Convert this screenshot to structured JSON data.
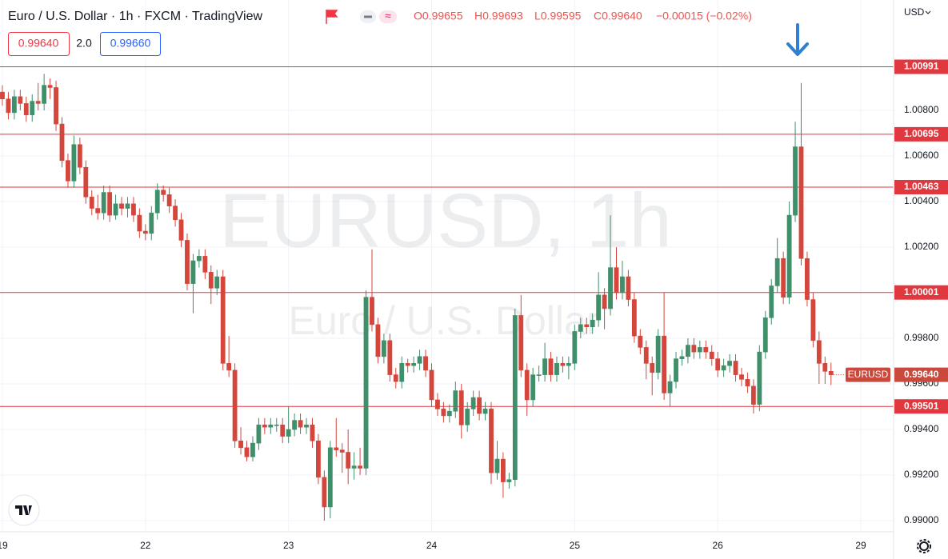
{
  "header": {
    "symbol": "Euro / U.S. Dollar · 1h · FXCM · TradingView",
    "ohlc": [
      "O0.99655",
      "H0.99693",
      "L0.99595",
      "C0.99640",
      "−0.00015 (−0.02%)"
    ],
    "sell_price": "0.99640",
    "spread": "2.0",
    "buy_price": "0.99660",
    "currency": "USD"
  },
  "chart_data": {
    "type": "candlestick",
    "watermark": "EURUSD, 1h",
    "watermark_subtitle": "Euro / U.S. Dollar",
    "up_color": "#3f8f6b",
    "down_color": "#d4463c",
    "grid": true,
    "xlim": [
      -0.4,
      149.5
    ],
    "ylim": [
      0.98951,
      1.01284
    ],
    "xticks": [
      {
        "value": 0,
        "label": "19"
      },
      {
        "value": 24,
        "label": "22"
      },
      {
        "value": 48,
        "label": "23"
      },
      {
        "value": 72,
        "label": "24"
      },
      {
        "value": 96,
        "label": "25"
      },
      {
        "value": 120,
        "label": "26"
      },
      {
        "value": 144,
        "label": "29"
      }
    ],
    "yticks": [
      {
        "value": 0.99,
        "label": "0.99000"
      },
      {
        "value": 0.992,
        "label": "0.99200"
      },
      {
        "value": 0.994,
        "label": "0.99400"
      },
      {
        "value": 0.996,
        "label": "0.99600"
      },
      {
        "value": 0.998,
        "label": "0.99800"
      },
      {
        "value": 1.0,
        "label": "1.00000"
      },
      {
        "value": 1.002,
        "label": "1.00200"
      },
      {
        "value": 1.004,
        "label": "1.00400"
      },
      {
        "value": 1.006,
        "label": "1.00600"
      },
      {
        "value": 1.008,
        "label": "1.00800"
      }
    ],
    "levels": [
      {
        "value": 1.00991,
        "label": "1.00991"
      },
      {
        "value": 1.00695,
        "label": "1.00695"
      },
      {
        "value": 1.00463,
        "label": "1.00463"
      },
      {
        "value": 1.00001,
        "label": "1.00001"
      },
      {
        "value": 0.99501,
        "label": "0.99501"
      }
    ],
    "level_color": "#e0383e",
    "last_price": {
      "value": 0.9964,
      "label": "0.99640",
      "symbol": "EURUSD"
    },
    "open": [
      1.0088,
      1.0085,
      1.0079,
      1.0086,
      1.0083,
      1.0078,
      1.0084,
      1.0083,
      1.0091,
      1.009,
      1.0074,
      1.0058,
      1.0049,
      1.0065,
      1.0055,
      1.0042,
      1.0037,
      1.0035,
      1.0044,
      1.0034,
      1.0039,
      1.0037,
      1.0039,
      1.0034,
      1.0027,
      1.0026,
      1.0035,
      1.0045,
      1.0043,
      1.0038,
      1.0032,
      1.0023,
      1.0004,
      1.0014,
      1.0016,
      1.0009,
      1.0002,
      1.0007,
      0.9969,
      0.9966,
      0.9935,
      0.9932,
      0.9928,
      0.9934,
      0.9942,
      0.9941,
      0.9942,
      0.9942,
      0.9937,
      0.994,
      0.9944,
      0.9941,
      0.9942,
      0.9935,
      0.9919,
      0.9906,
      0.9932,
      0.9931,
      0.993,
      0.9923,
      0.9924,
      0.9923,
      0.9998,
      0.9986,
      0.9972,
      0.9979,
      0.9964,
      0.9961,
      0.9969,
      0.9968,
      0.9969,
      0.9972,
      0.9966,
      0.9953,
      0.9949,
      0.9946,
      0.9948,
      0.9957,
      0.9942,
      0.9949,
      0.9954,
      0.9947,
      0.9949,
      0.9921,
      0.9927,
      0.9917,
      0.9918,
      0.999,
      0.9966,
      0.9953,
      0.9964,
      0.9964,
      0.9971,
      0.9964,
      0.9969,
      0.9968,
      0.9969,
      0.9983,
      0.9986,
      0.9985,
      0.9988,
      0.9999,
      0.9993,
      1.0011,
      1.0,
      1.0007,
      0.9997,
      0.9981,
      0.9976,
      0.9969,
      0.9965,
      0.9981,
      0.9956,
      0.9961,
      0.9971,
      0.9972,
      0.9977,
      0.9974,
      0.9976,
      0.9974,
      0.9971,
      0.9966,
      0.9968,
      0.997,
      0.9964,
      0.9962,
      0.9959,
      0.9951,
      0.9974,
      0.9989,
      1.0003,
      1.0015,
      0.9998,
      1.0034,
      1.0064,
      1.0015,
      0.9997,
      0.9979,
      0.9969,
      0.99655
    ],
    "high": [
      1.0091,
      1.0088,
      1.0089,
      1.0089,
      1.0086,
      1.0087,
      1.0092,
      1.0096,
      1.0094,
      1.0093,
      1.0077,
      1.0061,
      1.0069,
      1.0068,
      1.0058,
      1.0045,
      1.0043,
      1.0047,
      1.0047,
      1.0043,
      1.0042,
      1.0042,
      1.0042,
      1.0037,
      1.003,
      1.0038,
      1.0048,
      1.0047,
      1.0046,
      1.0041,
      1.0035,
      1.0026,
      1.0017,
      1.0019,
      1.0019,
      1.0012,
      1.001,
      1.001,
      0.9981,
      0.9969,
      0.9941,
      0.9935,
      0.9937,
      0.9945,
      0.9945,
      0.9945,
      0.9945,
      0.9945,
      0.995,
      0.9947,
      0.9947,
      0.9945,
      0.9945,
      0.9938,
      0.9922,
      0.9935,
      0.9945,
      0.9934,
      0.994,
      0.993,
      0.9932,
      1.0001,
      1.0019,
      0.9989,
      0.9982,
      0.9982,
      0.9967,
      0.9972,
      0.9971,
      0.9972,
      0.9975,
      0.9975,
      0.9969,
      0.9956,
      0.9952,
      0.9951,
      0.9961,
      0.996,
      0.9952,
      0.9957,
      0.9957,
      0.9952,
      0.9952,
      0.9935,
      0.993,
      0.9921,
      0.9993,
      0.9999,
      0.9969,
      0.9967,
      0.9968,
      0.9978,
      0.9974,
      0.9972,
      0.9972,
      0.9972,
      0.9986,
      0.9989,
      0.9989,
      0.9991,
      1.0009,
      1.0002,
      1.0034,
      1.002,
      1.0014,
      1.001,
      1.0,
      0.9984,
      0.9979,
      0.9972,
      0.9984,
      1.0,
      0.9964,
      0.9974,
      0.9975,
      0.998,
      0.998,
      0.9979,
      0.9979,
      0.9977,
      0.9974,
      0.9971,
      0.9973,
      0.9973,
      0.9967,
      0.9965,
      0.9962,
      0.9977,
      0.9992,
      1.0006,
      1.0024,
      1.0018,
      1.004,
      1.0075,
      1.0092,
      1.0018,
      1.0,
      0.9983,
      0.9972,
      0.99693
    ],
    "low": [
      1.0082,
      1.0076,
      1.0076,
      1.008,
      1.0075,
      1.0075,
      1.008,
      1.008,
      1.0085,
      1.0071,
      1.0055,
      1.0046,
      1.0046,
      1.0052,
      1.0039,
      1.0034,
      1.0032,
      1.0032,
      1.0031,
      1.0032,
      1.0034,
      1.0033,
      1.0031,
      1.0024,
      1.0023,
      1.0023,
      1.0032,
      1.004,
      1.0035,
      1.0029,
      1.002,
      1.0001,
      0.9991,
      1.0011,
      1.0006,
      0.9995,
      0.9999,
      0.9966,
      0.9963,
      0.9932,
      0.9929,
      0.9926,
      0.9926,
      0.9931,
      0.9938,
      0.9938,
      0.9939,
      0.9934,
      0.9934,
      0.9937,
      0.9938,
      0.9938,
      0.9932,
      0.9916,
      0.99,
      0.9901,
      0.9928,
      0.9921,
      0.9916,
      0.9918,
      0.992,
      0.992,
      0.9983,
      0.9969,
      0.9969,
      0.9961,
      0.9958,
      0.9958,
      0.9965,
      0.9965,
      0.9966,
      0.9963,
      0.995,
      0.9946,
      0.9943,
      0.9943,
      0.9945,
      0.9936,
      0.9939,
      0.9946,
      0.9944,
      0.9944,
      0.9916,
      0.9918,
      0.991,
      0.9914,
      0.9915,
      0.9963,
      0.9946,
      0.995,
      0.9961,
      0.9961,
      0.9961,
      0.9961,
      0.9965,
      0.9962,
      0.9966,
      0.998,
      0.9982,
      0.9982,
      0.9985,
      0.9984,
      0.999,
      0.9997,
      0.9997,
      0.9994,
      0.9978,
      0.9973,
      0.9962,
      0.9955,
      0.9962,
      0.9953,
      0.995,
      0.9958,
      0.9968,
      0.9969,
      0.9971,
      0.9971,
      0.9971,
      0.9968,
      0.9963,
      0.9963,
      0.9965,
      0.9961,
      0.9959,
      0.9956,
      0.9947,
      0.9948,
      0.9971,
      0.9986,
      1.0,
      0.9995,
      0.9995,
      1.0031,
      1.0012,
      0.9994,
      0.9976,
      0.996,
      0.996,
      0.99595
    ],
    "close": [
      1.0085,
      1.0079,
      1.0086,
      1.0083,
      1.0078,
      1.0084,
      1.0083,
      1.0091,
      1.009,
      1.0074,
      1.0058,
      1.0049,
      1.0065,
      1.0055,
      1.0042,
      1.0037,
      1.0035,
      1.0044,
      1.0034,
      1.0039,
      1.0037,
      1.0039,
      1.0034,
      1.0027,
      1.0026,
      1.0035,
      1.0045,
      1.0043,
      1.0038,
      1.0032,
      1.0023,
      1.0004,
      1.0014,
      1.0016,
      1.0009,
      1.0002,
      1.0007,
      0.9969,
      0.9966,
      0.9935,
      0.9932,
      0.9928,
      0.9934,
      0.9942,
      0.9941,
      0.9942,
      0.9942,
      0.9937,
      0.994,
      0.9944,
      0.9941,
      0.9942,
      0.9935,
      0.9919,
      0.9906,
      0.9932,
      0.9931,
      0.993,
      0.9923,
      0.9924,
      0.9923,
      0.9998,
      0.9986,
      0.9972,
      0.9979,
      0.9964,
      0.9961,
      0.9969,
      0.9968,
      0.9969,
      0.9972,
      0.9966,
      0.9953,
      0.9949,
      0.9946,
      0.9948,
      0.9957,
      0.9942,
      0.9949,
      0.9954,
      0.9947,
      0.9949,
      0.9921,
      0.9927,
      0.9917,
      0.9918,
      0.999,
      0.9966,
      0.9953,
      0.9964,
      0.9964,
      0.9971,
      0.9964,
      0.9969,
      0.9968,
      0.9969,
      0.9983,
      0.9986,
      0.9985,
      0.9988,
      0.9999,
      0.9993,
      1.0011,
      1.0,
      1.0007,
      0.9997,
      0.9981,
      0.9976,
      0.9969,
      0.9965,
      0.9981,
      0.9956,
      0.9961,
      0.9971,
      0.9972,
      0.9977,
      0.9974,
      0.9976,
      0.9974,
      0.9971,
      0.9966,
      0.9968,
      0.997,
      0.9964,
      0.9962,
      0.9959,
      0.9951,
      0.9974,
      0.9989,
      1.0003,
      1.0015,
      0.9998,
      1.0034,
      1.0064,
      1.0015,
      0.9997,
      0.9979,
      0.9969,
      0.99655,
      0.9964
    ]
  }
}
